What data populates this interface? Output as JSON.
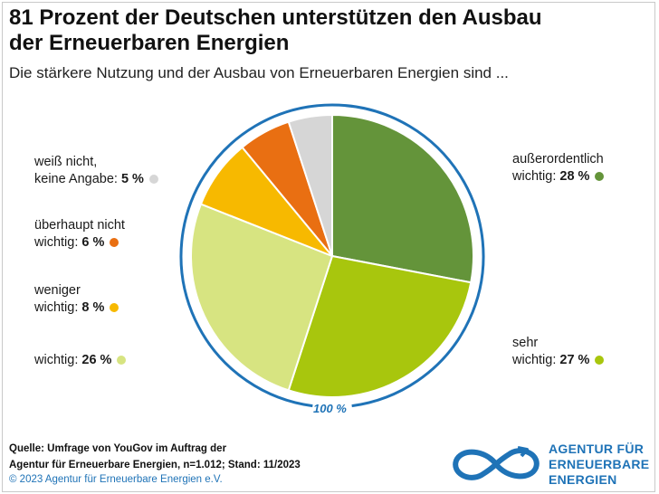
{
  "title_line1": "81 Prozent der Deutschen unterstützen den Ausbau",
  "title_line2": "der Erneuerbaren Energien",
  "subtitle": "Die stärkere Nutzung und der Ausbau von Erneuerbaren Energien sind ...",
  "total_label": "100 %",
  "colors": {
    "ring": "#1f73b7",
    "accent": "#1f73b7"
  },
  "chart_data": {
    "type": "pie",
    "title": "81 Prozent der Deutschen unterstützen den Ausbau der Erneuerbaren Energien",
    "total": 100,
    "slices": [
      {
        "label_line1": "außerordentlich",
        "label_line2": "wichtig:",
        "pct_text": "28 %",
        "value": 28,
        "color": "#64943a"
      },
      {
        "label_line1": "sehr",
        "label_line2": "wichtig:",
        "pct_text": "27 %",
        "value": 27,
        "color": "#a8c60d"
      },
      {
        "label_line1": "",
        "label_line2": "wichtig:",
        "pct_text": "26 %",
        "value": 26,
        "color": "#d7e481"
      },
      {
        "label_line1": "weniger",
        "label_line2": "wichtig:",
        "pct_text": "8 %",
        "value": 8,
        "color": "#f7b900"
      },
      {
        "label_line1": "überhaupt nicht",
        "label_line2": "wichtig:",
        "pct_text": "6 %",
        "value": 6,
        "color": "#e96f12"
      },
      {
        "label_line1": "weiß nicht,",
        "label_line2": "keine Angabe:",
        "pct_text": "5 %",
        "value": 5,
        "color": "#d6d6d6"
      }
    ]
  },
  "source": {
    "line1": "Quelle: Umfrage von YouGov im Auftrag der",
    "line2": "Agentur für Erneuerbare Energien, n=1.012; Stand: 11/2023"
  },
  "copyright": "© 2023 Agentur für Erneuerbare Energien e.V.",
  "logo": {
    "line1": "AGENTUR FÜR",
    "line2": "ERNEUERBARE",
    "line3": "ENERGIEN"
  }
}
